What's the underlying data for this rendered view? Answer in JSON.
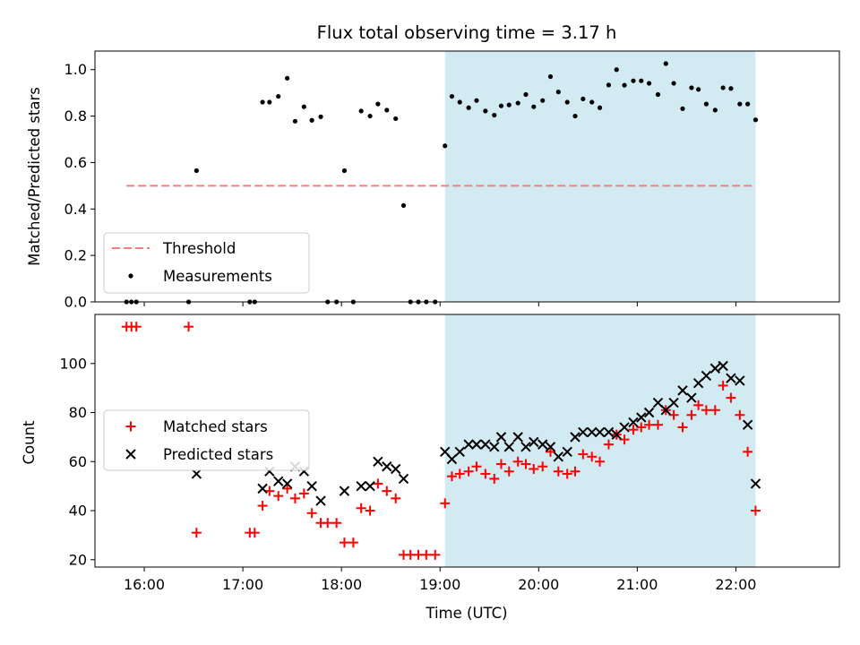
{
  "title": "Flux total observing time = 3.17 h",
  "colors": {
    "highlight": "#add8e6",
    "threshold": "#f08080",
    "measurement": "#000000",
    "matched": "#ff0000",
    "predicted": "#000000"
  },
  "chart_data": [
    {
      "type": "scatter",
      "panel": "top",
      "ylabel": "Matched/Predicted stars",
      "xlim": [
        15.5,
        23.05
      ],
      "ylim": [
        0.0,
        1.08
      ],
      "yticks": [
        0.0,
        0.2,
        0.4,
        0.6,
        0.8,
        1.0
      ],
      "ytick_labels": [
        "0.0",
        "0.2",
        "0.4",
        "0.6",
        "0.8",
        "1.0"
      ],
      "highlight_region": [
        19.05,
        22.2
      ],
      "legend": {
        "position": "lower-left",
        "entries": [
          "Threshold",
          "Measurements"
        ]
      },
      "threshold": {
        "name": "Threshold",
        "y": 0.5,
        "x_range": [
          15.82,
          22.2
        ]
      },
      "series": [
        {
          "name": "Measurements",
          "points": [
            [
              15.82,
              0.0
            ],
            [
              15.87,
              0.0
            ],
            [
              15.92,
              0.0
            ],
            [
              16.45,
              0.0
            ],
            [
              16.53,
              0.565
            ],
            [
              17.07,
              0.0
            ],
            [
              17.12,
              0.0
            ],
            [
              17.2,
              0.86
            ],
            [
              17.27,
              0.86
            ],
            [
              17.36,
              0.885
            ],
            [
              17.45,
              0.963
            ],
            [
              17.53,
              0.778
            ],
            [
              17.62,
              0.84
            ],
            [
              17.7,
              0.782
            ],
            [
              17.79,
              0.797
            ],
            [
              17.86,
              0.0
            ],
            [
              17.95,
              0.0
            ],
            [
              18.03,
              0.565
            ],
            [
              18.12,
              0.0
            ],
            [
              18.2,
              0.822
            ],
            [
              18.29,
              0.8
            ],
            [
              18.37,
              0.852
            ],
            [
              18.46,
              0.826
            ],
            [
              18.55,
              0.789
            ],
            [
              18.63,
              0.415
            ],
            [
              18.7,
              0.0
            ],
            [
              18.78,
              0.0
            ],
            [
              18.86,
              0.0
            ],
            [
              18.95,
              0.0
            ],
            [
              19.05,
              0.672
            ],
            [
              19.12,
              0.885
            ],
            [
              19.2,
              0.86
            ],
            [
              19.29,
              0.836
            ],
            [
              19.37,
              0.867
            ],
            [
              19.46,
              0.822
            ],
            [
              19.55,
              0.804
            ],
            [
              19.62,
              0.844
            ],
            [
              19.7,
              0.848
            ],
            [
              19.79,
              0.856
            ],
            [
              19.87,
              0.893
            ],
            [
              19.95,
              0.84
            ],
            [
              20.04,
              0.867
            ],
            [
              20.12,
              0.97
            ],
            [
              20.2,
              0.904
            ],
            [
              20.29,
              0.86
            ],
            [
              20.37,
              0.8
            ],
            [
              20.45,
              0.874
            ],
            [
              20.54,
              0.86
            ],
            [
              20.62,
              0.836
            ],
            [
              20.71,
              0.934
            ],
            [
              20.79,
              1.0
            ],
            [
              20.87,
              0.933
            ],
            [
              20.96,
              0.952
            ],
            [
              21.04,
              0.952
            ],
            [
              21.12,
              0.941
            ],
            [
              21.21,
              0.893
            ],
            [
              21.29,
              1.026
            ],
            [
              21.37,
              0.941
            ],
            [
              21.46,
              0.832
            ],
            [
              21.55,
              0.922
            ],
            [
              21.62,
              0.915
            ],
            [
              21.7,
              0.852
            ],
            [
              21.79,
              0.826
            ],
            [
              21.87,
              0.922
            ],
            [
              21.95,
              0.919
            ],
            [
              22.04,
              0.852
            ],
            [
              22.12,
              0.852
            ],
            [
              22.2,
              0.784
            ]
          ]
        }
      ]
    },
    {
      "type": "scatter",
      "panel": "bottom",
      "xlabel": "Time (UTC)",
      "ylabel": "Count",
      "xlim": [
        15.5,
        23.05
      ],
      "ylim": [
        17,
        120
      ],
      "xticks": [
        16,
        17,
        18,
        19,
        20,
        21,
        22
      ],
      "xtick_labels": [
        "16:00",
        "17:00",
        "18:00",
        "19:00",
        "20:00",
        "21:00",
        "22:00"
      ],
      "yticks": [
        20,
        40,
        60,
        80,
        100
      ],
      "ytick_labels": [
        "20",
        "40",
        "60",
        "80",
        "100"
      ],
      "highlight_region": [
        19.05,
        22.2
      ],
      "legend": {
        "position": "center-left",
        "entries": [
          "Matched stars",
          "Predicted stars"
        ]
      },
      "series": [
        {
          "name": "Matched stars",
          "marker": "plus",
          "points": [
            [
              15.82,
              115
            ],
            [
              15.87,
              115
            ],
            [
              15.92,
              115
            ],
            [
              16.45,
              115
            ],
            [
              16.53,
              31
            ],
            [
              17.07,
              31
            ],
            [
              17.12,
              31
            ],
            [
              17.2,
              42
            ],
            [
              17.27,
              48
            ],
            [
              17.36,
              46
            ],
            [
              17.45,
              49
            ],
            [
              17.53,
              45
            ],
            [
              17.62,
              47
            ],
            [
              17.7,
              39
            ],
            [
              17.79,
              35
            ],
            [
              17.86,
              35
            ],
            [
              17.95,
              35
            ],
            [
              18.03,
              27
            ],
            [
              18.12,
              27
            ],
            [
              18.2,
              41
            ],
            [
              18.29,
              40
            ],
            [
              18.37,
              51
            ],
            [
              18.46,
              48
            ],
            [
              18.55,
              45
            ],
            [
              18.63,
              22
            ],
            [
              18.7,
              22
            ],
            [
              18.78,
              22
            ],
            [
              18.86,
              22
            ],
            [
              18.95,
              22
            ],
            [
              19.05,
              43
            ],
            [
              19.12,
              54
            ],
            [
              19.2,
              55
            ],
            [
              19.29,
              56
            ],
            [
              19.37,
              58
            ],
            [
              19.46,
              55
            ],
            [
              19.55,
              53
            ],
            [
              19.62,
              59
            ],
            [
              19.7,
              56
            ],
            [
              19.79,
              60
            ],
            [
              19.87,
              59
            ],
            [
              19.95,
              57
            ],
            [
              20.04,
              58
            ],
            [
              20.12,
              64
            ],
            [
              20.2,
              56
            ],
            [
              20.29,
              55
            ],
            [
              20.37,
              56
            ],
            [
              20.45,
              63
            ],
            [
              20.54,
              62
            ],
            [
              20.62,
              60
            ],
            [
              20.71,
              67
            ],
            [
              20.79,
              71
            ],
            [
              20.87,
              69
            ],
            [
              20.96,
              73
            ],
            [
              21.04,
              74
            ],
            [
              21.12,
              75
            ],
            [
              21.21,
              75
            ],
            [
              21.29,
              81
            ],
            [
              21.37,
              79
            ],
            [
              21.46,
              74
            ],
            [
              21.55,
              79
            ],
            [
              21.62,
              83
            ],
            [
              21.7,
              81
            ],
            [
              21.79,
              81
            ],
            [
              21.87,
              91
            ],
            [
              21.95,
              86
            ],
            [
              22.04,
              79
            ],
            [
              22.12,
              64
            ],
            [
              22.2,
              40
            ]
          ]
        },
        {
          "name": "Predicted stars",
          "marker": "x",
          "points": [
            [
              16.53,
              55
            ],
            [
              17.2,
              49
            ],
            [
              17.27,
              56
            ],
            [
              17.36,
              52
            ],
            [
              17.45,
              51
            ],
            [
              17.53,
              58
            ],
            [
              17.62,
              56
            ],
            [
              17.7,
              50
            ],
            [
              17.79,
              44
            ],
            [
              18.03,
              48
            ],
            [
              18.2,
              50
            ],
            [
              18.29,
              50
            ],
            [
              18.37,
              60
            ],
            [
              18.46,
              58
            ],
            [
              18.55,
              57
            ],
            [
              18.63,
              53
            ],
            [
              19.05,
              64
            ],
            [
              19.12,
              61
            ],
            [
              19.2,
              64
            ],
            [
              19.29,
              67
            ],
            [
              19.37,
              67
            ],
            [
              19.46,
              67
            ],
            [
              19.55,
              66
            ],
            [
              19.62,
              70
            ],
            [
              19.7,
              66
            ],
            [
              19.79,
              70
            ],
            [
              19.87,
              66
            ],
            [
              19.95,
              68
            ],
            [
              20.04,
              67
            ],
            [
              20.12,
              66
            ],
            [
              20.2,
              62
            ],
            [
              20.29,
              64
            ],
            [
              20.37,
              70
            ],
            [
              20.45,
              72
            ],
            [
              20.54,
              72
            ],
            [
              20.62,
              72
            ],
            [
              20.71,
              72
            ],
            [
              20.79,
              71
            ],
            [
              20.87,
              74
            ],
            [
              20.96,
              76
            ],
            [
              21.04,
              78
            ],
            [
              21.12,
              80
            ],
            [
              21.21,
              84
            ],
            [
              21.29,
              81
            ],
            [
              21.37,
              84
            ],
            [
              21.46,
              89
            ],
            [
              21.55,
              86
            ],
            [
              21.62,
              92
            ],
            [
              21.7,
              95
            ],
            [
              21.79,
              98
            ],
            [
              21.87,
              99
            ],
            [
              21.95,
              94
            ],
            [
              22.04,
              93
            ],
            [
              22.12,
              75
            ],
            [
              22.2,
              51
            ]
          ]
        }
      ]
    }
  ]
}
